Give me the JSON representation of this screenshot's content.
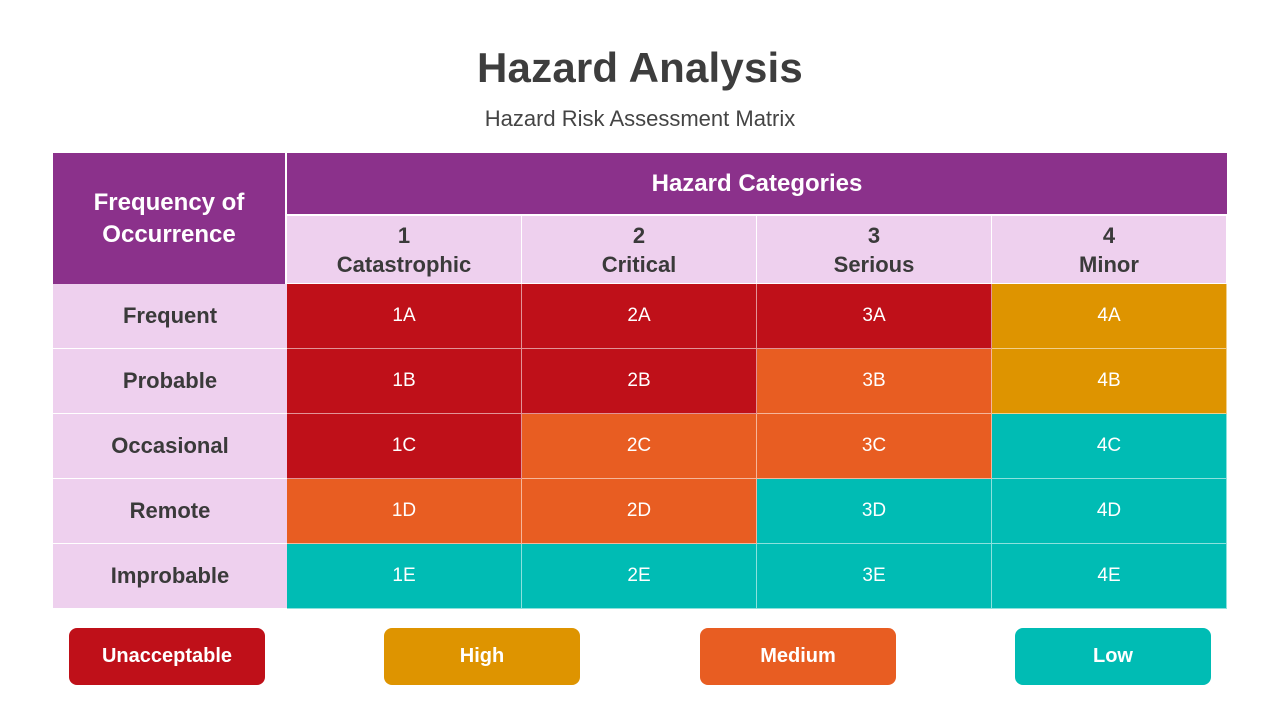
{
  "title": "Hazard Analysis",
  "subtitle": "Hazard Risk Assessment Matrix",
  "colors": {
    "header_purple": "#8b318b",
    "header_light": "#eed0ee",
    "unacceptable": "#bf1019",
    "high": "#de9400",
    "medium": "#e85d22",
    "low": "#00bcb4"
  },
  "matrix": {
    "corner_label": "Frequency of Occurrence",
    "categories_label": "Hazard Categories",
    "columns": [
      {
        "number": "1",
        "name": "Catastrophic"
      },
      {
        "number": "2",
        "name": "Critical"
      },
      {
        "number": "3",
        "name": "Serious"
      },
      {
        "number": "4",
        "name": "Minor"
      }
    ],
    "rows": [
      {
        "label": "Frequent",
        "cells": [
          {
            "code": "1A",
            "level": "unacceptable"
          },
          {
            "code": "2A",
            "level": "unacceptable"
          },
          {
            "code": "3A",
            "level": "unacceptable"
          },
          {
            "code": "4A",
            "level": "high"
          }
        ]
      },
      {
        "label": "Probable",
        "cells": [
          {
            "code": "1B",
            "level": "unacceptable"
          },
          {
            "code": "2B",
            "level": "unacceptable"
          },
          {
            "code": "3B",
            "level": "medium"
          },
          {
            "code": "4B",
            "level": "high"
          }
        ]
      },
      {
        "label": "Occasional",
        "cells": [
          {
            "code": "1C",
            "level": "unacceptable"
          },
          {
            "code": "2C",
            "level": "medium"
          },
          {
            "code": "3C",
            "level": "medium"
          },
          {
            "code": "4C",
            "level": "low"
          }
        ]
      },
      {
        "label": "Remote",
        "cells": [
          {
            "code": "1D",
            "level": "medium"
          },
          {
            "code": "2D",
            "level": "medium"
          },
          {
            "code": "3D",
            "level": "low"
          },
          {
            "code": "4D",
            "level": "low"
          }
        ]
      },
      {
        "label": "Improbable",
        "cells": [
          {
            "code": "1E",
            "level": "low"
          },
          {
            "code": "2E",
            "level": "low"
          },
          {
            "code": "3E",
            "level": "low"
          },
          {
            "code": "4E",
            "level": "low"
          }
        ]
      }
    ]
  },
  "legend": [
    {
      "label": "Unacceptable",
      "level": "unacceptable"
    },
    {
      "label": "High",
      "level": "high"
    },
    {
      "label": "Medium",
      "level": "medium"
    },
    {
      "label": "Low",
      "level": "low"
    }
  ]
}
